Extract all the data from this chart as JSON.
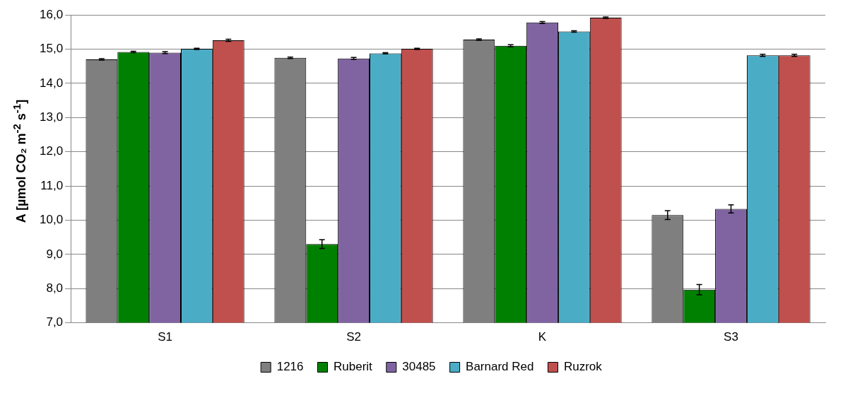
{
  "chart_data": {
    "type": "bar",
    "ylabel": "A [µmol CO₂ m$^{-2}$ s$^{-1}$]",
    "categories": [
      "S1",
      "S2",
      "K",
      "S3"
    ],
    "series": [
      {
        "name": "1216",
        "color": "#7f7f7f",
        "values": [
          14.7,
          14.75,
          15.28,
          10.15
        ],
        "errors": [
          0.02,
          0.02,
          0.02,
          0.13
        ]
      },
      {
        "name": "Ruberit",
        "color": "#008000",
        "values": [
          14.92,
          9.3,
          15.1,
          7.97
        ],
        "errors": [
          0.02,
          0.13,
          0.03,
          0.15
        ]
      },
      {
        "name": "30485",
        "color": "#8064a2",
        "values": [
          14.9,
          14.73,
          15.78,
          10.33
        ],
        "errors": [
          0.03,
          0.03,
          0.03,
          0.12
        ]
      },
      {
        "name": "Barnard Red",
        "color": "#4bacc6",
        "values": [
          15.01,
          14.88,
          15.52,
          14.82
        ],
        "errors": [
          0.02,
          0.02,
          0.02,
          0.03
        ]
      },
      {
        "name": "Ruzrok",
        "color": "#c0504d",
        "values": [
          15.26,
          15.01,
          15.92,
          14.82
        ],
        "errors": [
          0.03,
          0.02,
          0.02,
          0.03
        ]
      }
    ],
    "ylim": [
      7,
      16
    ],
    "yticks": [
      {
        "value": 7,
        "label": "7,0"
      },
      {
        "value": 8,
        "label": "8,0"
      },
      {
        "value": 9,
        "label": "9,0"
      },
      {
        "value": 10,
        "label": "10,0"
      },
      {
        "value": 11,
        "label": "11,0"
      },
      {
        "value": 12,
        "label": "12,0"
      },
      {
        "value": 13,
        "label": "13,0"
      },
      {
        "value": 14,
        "label": "14,0"
      },
      {
        "value": 15,
        "label": "15,0"
      },
      {
        "value": 16,
        "label": "16,0"
      }
    ],
    "grid": "y",
    "legend": "bottom"
  }
}
